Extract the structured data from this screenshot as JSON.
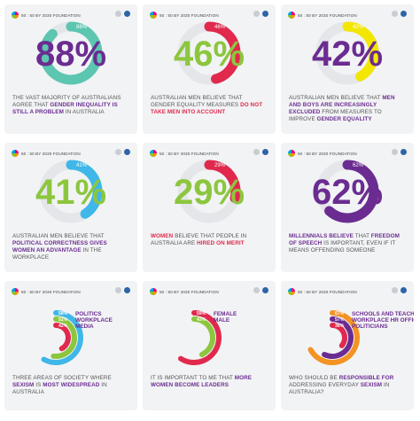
{
  "foundation": "50 : 50 BY 2030 FOUNDATION",
  "colors": {
    "teal": "#5cc6b0",
    "green": "#8cc63e",
    "yellow": "#f3e600",
    "blue": "#3fb7e8",
    "red": "#e0294d",
    "purple": "#6b2c91",
    "orange": "#f39324",
    "dark": "#555555"
  },
  "chart_data": [
    {
      "type": "gauge",
      "value": 88,
      "label": "88%",
      "color": "#5cc6b0",
      "text_color": "#6b2c91",
      "caption": [
        {
          "t": "THE VAST MAJORITY OF AUSTRALIANS AGREE THAT ",
          "b": false
        },
        {
          "t": "GENDER INEQUALITY IS STILL A PROBLEM",
          "b": true,
          "c": "#6b2c91"
        },
        {
          "t": " IN AUSTRALIA",
          "b": false
        }
      ]
    },
    {
      "type": "gauge",
      "value": 46,
      "label": "46%",
      "color": "#e0294d",
      "text_color": "#8cc63e",
      "caption": [
        {
          "t": "AUSTRALIAN MEN BELIEVE THAT GENDER EQUALITY MEASURES ",
          "b": false
        },
        {
          "t": "DO NOT TAKE MEN INTO ACCOUNT",
          "b": true,
          "c": "#e0294d"
        }
      ]
    },
    {
      "type": "gauge",
      "value": 42,
      "label": "42%",
      "color": "#f3e600",
      "text_color": "#6b2c91",
      "caption": [
        {
          "t": "AUSTRALIAN MEN BELIEVE THAT ",
          "b": false
        },
        {
          "t": "MEN AND BOYS ARE INCREASINGLY EXCLUDED",
          "b": true,
          "c": "#6b2c91"
        },
        {
          "t": " FROM MEASURES TO IMPROVE ",
          "b": false
        },
        {
          "t": "GENDER EQUALITY",
          "b": true,
          "c": "#6b2c91"
        }
      ]
    },
    {
      "type": "gauge",
      "value": 41,
      "label": "41%",
      "color": "#3fb7e8",
      "text_color": "#8cc63e",
      "caption": [
        {
          "t": "AUSTRALIAN MEN BELIEVE THAT ",
          "b": false
        },
        {
          "t": "POLITICAL CORRECTNESS GIVES WOMEN AN ADVANTAGE",
          "b": true,
          "c": "#6b2c91"
        },
        {
          "t": " IN THE WORKPLACE",
          "b": false
        }
      ]
    },
    {
      "type": "gauge",
      "value": 29,
      "label": "29%",
      "color": "#e0294d",
      "text_color": "#8cc63e",
      "caption": [
        {
          "t": "WOMEN",
          "b": true,
          "c": "#e0294d"
        },
        {
          "t": " BELIEVE THAT PEOPLE IN AUSTRALIA ARE ",
          "b": false
        },
        {
          "t": "HIRED ON MERIT",
          "b": true,
          "c": "#e0294d"
        }
      ]
    },
    {
      "type": "gauge",
      "value": 62,
      "label": "62%",
      "color": "#6b2c91",
      "text_color": "#6b2c91",
      "caption": [
        {
          "t": "MILLENNIALS BELIEVE",
          "b": true,
          "c": "#6b2c91"
        },
        {
          "t": " THAT ",
          "b": false
        },
        {
          "t": "FREEDOM OF SPEECH",
          "b": true,
          "c": "#6b2c91"
        },
        {
          "t": " IS IMPORTANT, EVEN IF IT MEANS OFFENDING SOMEONE",
          "b": false
        }
      ]
    },
    {
      "type": "gauge_multi",
      "series": [
        {
          "name": "POLITICS",
          "value": 58,
          "label": "58%",
          "color": "#3fb7e8"
        },
        {
          "name": "WORKPLACE",
          "value": 52,
          "label": "52%",
          "color": "#8cc63e"
        },
        {
          "name": "MEDIA",
          "value": 42,
          "label": "42%",
          "color": "#e0294d"
        }
      ],
      "legend_color": "#6b2c91",
      "caption": [
        {
          "t": "THREE AREAS OF SOCIETY WHERE ",
          "b": false
        },
        {
          "t": "SEXISM",
          "b": true,
          "c": "#6b2c91"
        },
        {
          "t": " IS ",
          "b": false
        },
        {
          "t": "MOST WIDESPREAD",
          "b": true,
          "c": "#6b2c91"
        },
        {
          "t": " IN AUSTRALIA",
          "b": false
        }
      ]
    },
    {
      "type": "gauge_multi",
      "series": [
        {
          "name": "FEMALE",
          "value": 59,
          "label": "59%",
          "color": "#e0294d"
        },
        {
          "name": "MALE",
          "value": 43,
          "label": "43%",
          "color": "#8cc63e"
        }
      ],
      "legend_color": "#6b2c91",
      "caption": [
        {
          "t": "IT IS IMPORTANT TO ME THAT ",
          "b": false
        },
        {
          "t": "MORE WOMEN BECOME LEADERS",
          "b": true,
          "c": "#6b2c91"
        }
      ]
    },
    {
      "type": "gauge_multi",
      "series": [
        {
          "name": "SCHOOLS AND TEACHERS",
          "value": 67,
          "label": "67%",
          "color": "#f39324"
        },
        {
          "name": "WORKPLACE HR OFFICERS",
          "value": 57,
          "label": "57%",
          "color": "#6b2c91"
        },
        {
          "name": "POLITICIANS",
          "value": 36,
          "label": "36%",
          "color": "#e0294d"
        }
      ],
      "legend_color": "#6b2c91",
      "caption": [
        {
          "t": "WHO SHOULD BE ",
          "b": false
        },
        {
          "t": "RESPONSIBLE FOR",
          "b": true,
          "c": "#6b2c91"
        },
        {
          "t": " ADDRESSING EVERYDAY ",
          "b": false
        },
        {
          "t": "SEXISM",
          "b": true,
          "c": "#6b2c91"
        },
        {
          "t": " IN AUSTRALIA?",
          "b": false
        }
      ]
    }
  ]
}
